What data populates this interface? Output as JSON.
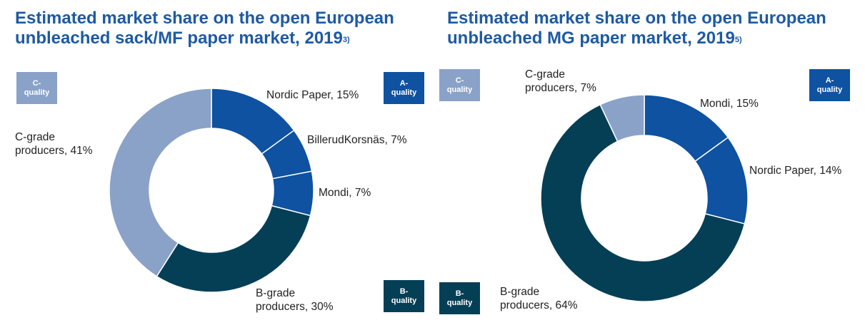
{
  "colors": {
    "title": "#1d5aa3",
    "a_quality": "#0e52a1",
    "b_quality": "#053f56",
    "c_quality": "#8aa2c8"
  },
  "chart_data": [
    {
      "type": "pie",
      "variant": "donut",
      "title": "Estimated market share on the open European unbleached sack/MF paper market, 2019",
      "title_footnote": "3)",
      "slices": [
        {
          "label": "Nordic Paper, 15%",
          "name": "Nordic Paper",
          "value": 15,
          "quality": "A"
        },
        {
          "label": "BillerudKorsnäs, 7%",
          "name": "BillerudKorsnäs",
          "value": 7,
          "quality": "A"
        },
        {
          "label": "Mondi, 7%",
          "name": "Mondi",
          "value": 7,
          "quality": "A"
        },
        {
          "label": "B-grade producers, 30%",
          "name": "B-grade producers",
          "value": 30,
          "quality": "B"
        },
        {
          "label": "C-grade producers, 41%",
          "name": "C-grade producers",
          "value": 41,
          "quality": "C"
        }
      ],
      "legend_boxes": [
        {
          "quality": "C",
          "line1": "C-",
          "line2": "quality"
        },
        {
          "quality": "A",
          "line1": "A-",
          "line2": "quality"
        },
        {
          "quality": "B",
          "line1": "B-",
          "line2": "quality"
        }
      ]
    },
    {
      "type": "pie",
      "variant": "donut",
      "title": "Estimated market share on the open European unbleached MG paper market, 2019",
      "title_footnote": "5)",
      "slices": [
        {
          "label": "Mondi, 15%",
          "name": "Mondi",
          "value": 15,
          "quality": "A"
        },
        {
          "label": "Nordic Paper, 14%",
          "name": "Nordic Paper",
          "value": 14,
          "quality": "A"
        },
        {
          "label": "B-grade producers, 64%",
          "name": "B-grade producers",
          "value": 64,
          "quality": "B"
        },
        {
          "label": "C-grade producers, 7%",
          "name": "C-grade producers",
          "value": 7,
          "quality": "C"
        }
      ],
      "legend_boxes": [
        {
          "quality": "C",
          "line1": "C-",
          "line2": "quality"
        },
        {
          "quality": "A",
          "line1": "A-",
          "line2": "quality"
        },
        {
          "quality": "B",
          "line1": "B-",
          "line2": "quality"
        }
      ]
    }
  ]
}
